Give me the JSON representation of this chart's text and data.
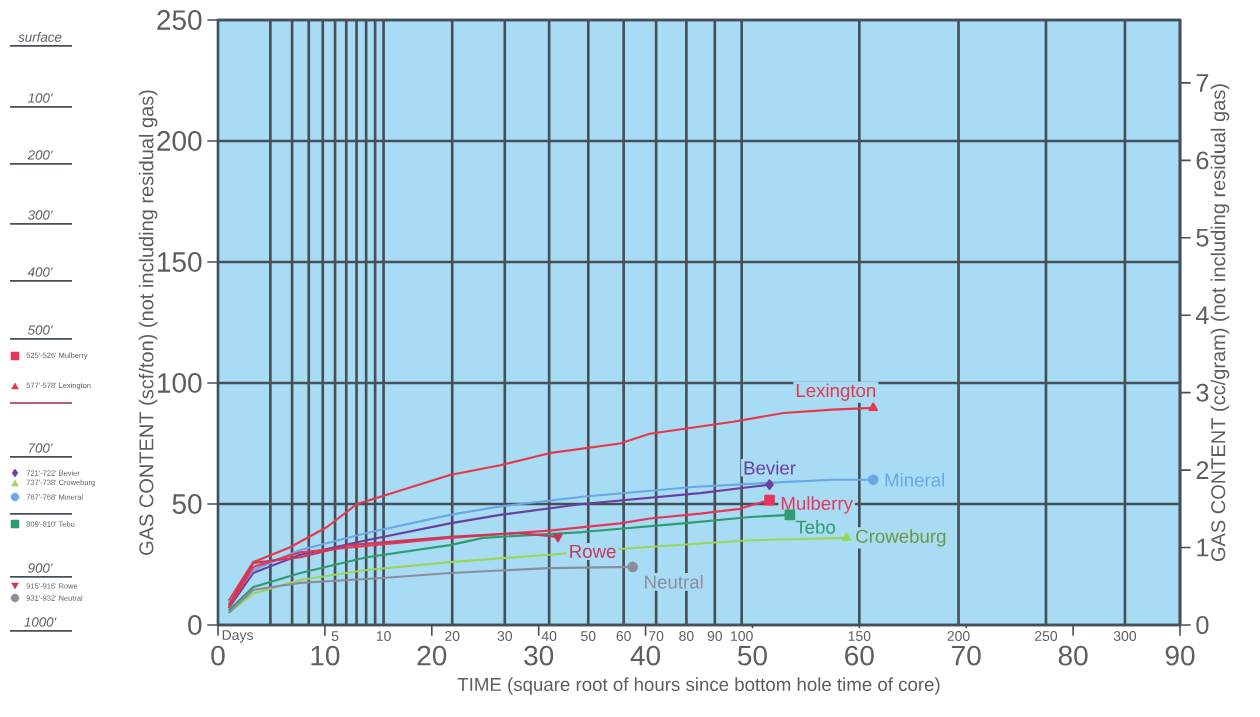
{
  "chart_data": {
    "type": "line",
    "xlabel": "TIME (square root of hours since bottom hole time of core)",
    "ylabel": "GAS CONTENT (scf/ton) (not including residual gas)",
    "y2label": "GAS CONTENT (cc/gram) (not including residual gas)",
    "xlim": [
      0,
      90
    ],
    "xticks": [
      0,
      10,
      20,
      30,
      40,
      50,
      60,
      70,
      80,
      90
    ],
    "ref_lines": [
      {
        "axis": "x",
        "value": 4.9
      },
      {
        "axis": "x",
        "value": 6.93
      },
      {
        "axis": "x",
        "value": 8.49
      },
      {
        "axis": "x",
        "value": 9.8
      },
      {
        "axis": "x",
        "value": 10.95
      },
      {
        "axis": "x",
        "value": 12
      },
      {
        "axis": "x",
        "value": 12.96
      },
      {
        "axis": "x",
        "value": 13.86
      },
      {
        "axis": "x",
        "value": 14.7
      },
      {
        "axis": "x",
        "value": 15.49
      },
      {
        "axis": "x",
        "value": 21.91
      },
      {
        "axis": "x",
        "value": 26.83
      },
      {
        "axis": "x",
        "value": 30.98
      },
      {
        "axis": "x",
        "value": 34.64
      },
      {
        "axis": "x",
        "value": 37.95
      },
      {
        "axis": "x",
        "value": 40.99
      },
      {
        "axis": "x",
        "value": 43.82
      },
      {
        "axis": "x",
        "value": 46.48
      },
      {
        "axis": "x",
        "value": 48.99
      },
      {
        "axis": "x",
        "value": 60
      },
      {
        "axis": "x",
        "value": 69.28
      },
      {
        "axis": "x",
        "value": 77.46
      },
      {
        "axis": "x",
        "value": 84.85
      }
    ],
    "ylim": [
      0,
      250
    ],
    "yticks": [
      0,
      50,
      100,
      150,
      200,
      250
    ],
    "y2lim": [
      0,
      7.8125
    ],
    "y2ticks": [
      0,
      1,
      2,
      3,
      4,
      5,
      6,
      7
    ],
    "grid": true,
    "series": [
      {
        "name": "Lexington",
        "color": "#e8364a",
        "x": [
          1,
          3.3,
          6.7,
          10.2,
          13,
          15.2,
          21.7,
          26.4,
          31,
          37.6,
          40.4,
          43.5,
          48.2,
          52.9,
          57.5,
          61.3
        ],
        "values": [
          10,
          26,
          32,
          40.5,
          50,
          53,
          62,
          66,
          71,
          75,
          79,
          81,
          84,
          87.6,
          89,
          89.7
        ]
      },
      {
        "name": "Bevier",
        "color": "#6b3fa0",
        "x": [
          1,
          3.3,
          7.7,
          13.9,
          21.7,
          26.4,
          34.1,
          45.1,
          49.8,
          51.6
        ],
        "values": [
          7,
          21.5,
          29,
          35,
          42,
          45.5,
          50,
          54.5,
          57,
          58
        ]
      },
      {
        "name": "Mineral",
        "color": "#6aa6e8",
        "x": [
          1,
          3.3,
          7.7,
          13.9,
          21.7,
          26.4,
          34.1,
          44.4,
          51.4,
          57.5,
          61.3
        ],
        "values": [
          9,
          22.7,
          31,
          38,
          45.5,
          49,
          53,
          57,
          58.7,
          60,
          60
        ]
      },
      {
        "name": "Mulberry",
        "color": "#e8365a",
        "x": [
          1,
          3.3,
          7.7,
          12.3,
          21.7,
          31,
          37.6,
          40.4,
          45.1,
          48.8,
          51.6
        ],
        "values": [
          7,
          24,
          30,
          32,
          36,
          39,
          42,
          44,
          46,
          48,
          51.6
        ]
      },
      {
        "name": "Tebo",
        "color": "#2e9c6e",
        "x": [
          1,
          3.3,
          7.7,
          13.9,
          21.7,
          24.8,
          34.1,
          43.5,
          49.8,
          53.5
        ],
        "values": [
          6,
          15.7,
          21.5,
          28,
          33,
          36,
          38.4,
          42,
          44.6,
          45.5
        ]
      },
      {
        "name": "Croweburg",
        "color": "#9ad65a",
        "x": [
          1,
          3.3,
          7.7,
          13.9,
          21.7,
          31,
          38.8,
          49.8,
          58.8
        ],
        "values": [
          5,
          13,
          18.6,
          22.7,
          26,
          29,
          31.8,
          35,
          36
        ]
      },
      {
        "name": "Rowe",
        "color": "#c8385a",
        "x": [
          1,
          3.3,
          7.7,
          12.3,
          21.7,
          28,
          31.8
        ],
        "values": [
          8,
          25.6,
          28,
          33,
          36.4,
          38,
          36.4
        ]
      },
      {
        "name": "Neutral",
        "color": "#8c8c9c",
        "x": [
          1,
          3.3,
          7.7,
          15.4,
          21.7,
          31,
          38.8
        ],
        "values": [
          5,
          14.5,
          17.4,
          19.4,
          21.5,
          23.5,
          24
        ]
      }
    ],
    "annotations": [
      "surface",
      "100'",
      "200'",
      "300'",
      "400'",
      "500'",
      "525'-526' Mulberry",
      "577'-578' Lexington",
      "700'",
      "721'-722' Bevier",
      "737'-738' Croweburg",
      "767'-768' Mineral",
      "809'-810' Tebo",
      "900'",
      "915'-916' Rowe",
      "931'-932' Neutral",
      "1000'",
      "Days",
      "5",
      "10",
      "20",
      "30",
      "40",
      "50",
      "60",
      "70",
      "80",
      "90",
      "100",
      "150",
      "200",
      "250",
      "300"
    ]
  }
}
